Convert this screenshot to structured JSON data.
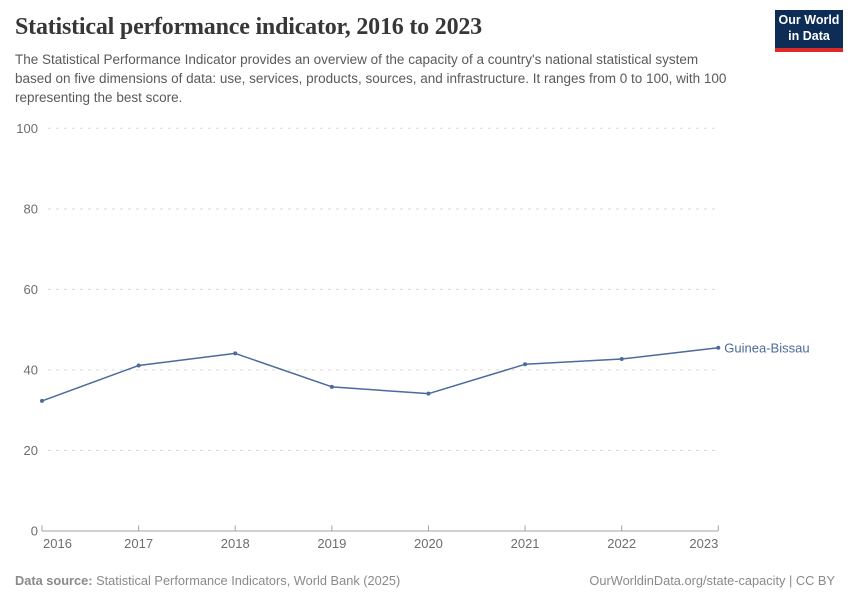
{
  "header": {
    "title": "Statistical performance indicator, 2016 to 2023",
    "subtitle": "The Statistical Performance Indicator provides an overview of the capacity of a country's national statistical system based on five dimensions of data: use, services, products, sources, and infrastructure. It ranges from 0 to 100, with 100 representing the best score."
  },
  "logo": {
    "line1": "Our World",
    "line2": "in Data",
    "bg_color": "#0d2d56",
    "stripe_color": "#dc2a29"
  },
  "chart_data": {
    "type": "line",
    "title": "Statistical performance indicator, 2016 to 2023",
    "x": [
      2016,
      2017,
      2018,
      2019,
      2020,
      2021,
      2022,
      2023
    ],
    "series": [
      {
        "name": "Guinea-Bissau",
        "values": [
          32.3,
          41.1,
          44.1,
          35.8,
          34.1,
          41.4,
          42.7,
          45.5
        ],
        "color": "#4c6a9c"
      }
    ],
    "xlabel": "",
    "ylabel": "",
    "ylim": [
      0,
      100
    ],
    "yticks": [
      0,
      20,
      40,
      60,
      80,
      100
    ],
    "grid": "horizontal-dashed",
    "legend_position": "end-of-line-label",
    "entity_label": "Guinea-Bissau"
  },
  "colors": {
    "series_blue": "#4c6a9c",
    "gridline": "#d9d9d9",
    "axis_line": "#a3a3a3",
    "tick_text": "#6e6e6e"
  },
  "footer": {
    "source_label": "Data source:",
    "source_text": " Statistical Performance Indicators, World Bank (2025)",
    "rights": "OurWorldinData.org/state-capacity | CC BY"
  }
}
